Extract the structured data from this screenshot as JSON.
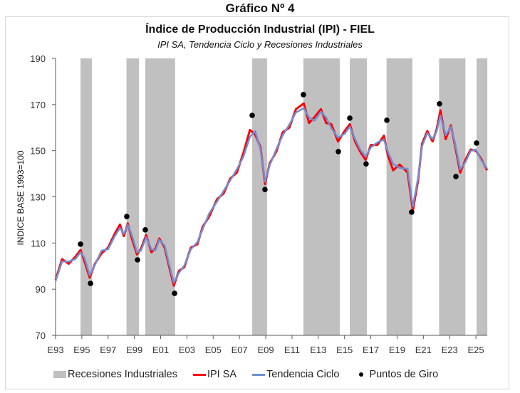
{
  "header": {
    "figure_label": "Gráfico Nº 4"
  },
  "colors": {
    "recession": "#c0c0c0",
    "ipi_sa": "#ff0000",
    "trend": "#6f8fd8",
    "turning_points": "#000000",
    "axis": "#595959"
  },
  "chart_data": {
    "type": "line",
    "title": "Índice de Producción Industrial (IPI) - FIEL",
    "subtitle": "IPI SA, Tendencia Ciclo y Recesiones Industriales",
    "xlabel": "",
    "ylabel": "INDICE BASE 1993=100",
    "xlim": [
      1993,
      2026
    ],
    "ylim": [
      70,
      190
    ],
    "yticks": [
      70,
      90,
      110,
      130,
      150,
      170,
      190
    ],
    "ytick_labels": [
      "70",
      "90",
      "110",
      "130",
      "150",
      "170",
      "190"
    ],
    "xticks": [
      1993,
      1995,
      1997,
      1999,
      2001,
      2003,
      2005,
      2007,
      2009,
      2011,
      2013,
      2015,
      2017,
      2019,
      2021,
      2023,
      2025
    ],
    "xtick_labels": [
      "E93",
      "E95",
      "E97",
      "E99",
      "E01",
      "E03",
      "E05",
      "E07",
      "E09",
      "E11",
      "E13",
      "E15",
      "E17",
      "E19",
      "E21",
      "E23",
      "E25"
    ],
    "grid": false,
    "legend_position": "bottom",
    "legend": [
      {
        "name": "Recesiones Industriales",
        "kind": "rect"
      },
      {
        "name": "IPI SA",
        "kind": "line"
      },
      {
        "name": "Tendencia Ciclo",
        "kind": "line"
      },
      {
        "name": "Puntos de Giro",
        "kind": "dot"
      }
    ],
    "recessions": [
      [
        1994.9,
        1995.77
      ],
      [
        1998.4,
        1999.35
      ],
      [
        1999.83,
        2002.1
      ],
      [
        2007.97,
        2009.1
      ],
      [
        2011.87,
        2014.64
      ],
      [
        2015.4,
        2016.7
      ],
      [
        2018.2,
        2020.17
      ],
      [
        2022.2,
        2024.2
      ],
      [
        2025.05,
        2025.87
      ]
    ],
    "series": [
      {
        "name": "Tendencia Ciclo",
        "x": [
          1993.0,
          1993.5,
          1994.0,
          1994.5,
          1994.9,
          1995.2,
          1995.6,
          1996.0,
          1996.5,
          1997.0,
          1997.5,
          1997.9,
          1998.2,
          1998.5,
          1998.8,
          1999.2,
          1999.5,
          1999.9,
          2000.3,
          2000.6,
          2000.9,
          2001.3,
          2001.7,
          2002.0,
          2002.4,
          2002.8,
          2003.3,
          2003.8,
          2004.2,
          2004.7,
          2005.3,
          2005.8,
          2006.3,
          2006.8,
          2007.3,
          2007.8,
          2008.2,
          2008.6,
          2008.95,
          2009.3,
          2009.8,
          2010.3,
          2010.8,
          2011.3,
          2011.9,
          2012.3,
          2012.7,
          2013.2,
          2013.6,
          2014.0,
          2014.5,
          2015.0,
          2015.4,
          2015.8,
          2016.2,
          2016.6,
          2017.0,
          2017.5,
          2018.0,
          2018.3,
          2018.7,
          2019.2,
          2019.8,
          2020.2,
          2020.6,
          2020.9,
          2021.3,
          2021.7,
          2022.0,
          2022.3,
          2022.7,
          2023.1,
          2023.4,
          2023.8,
          2024.2,
          2024.6,
          2025.0,
          2025.4,
          2025.85
        ],
        "values": [
          93.5,
          102,
          102,
          103,
          106,
          103.6,
          96,
          100.5,
          106.7,
          107.3,
          112.9,
          116.5,
          114,
          117.8,
          113.5,
          106,
          106.7,
          112.5,
          107.3,
          106.7,
          111.4,
          108.9,
          99.6,
          92.8,
          97.1,
          100.2,
          107.3,
          110.4,
          116,
          122.8,
          128,
          132.6,
          137.2,
          141.9,
          147.4,
          156,
          158.5,
          150.5,
          136.6,
          143.7,
          150.5,
          156.7,
          161.3,
          166.6,
          168.4,
          164.4,
          162.9,
          166.9,
          164.4,
          159.7,
          155.7,
          157.3,
          160.4,
          155.1,
          150.5,
          147.4,
          151.4,
          153.6,
          154.8,
          149.6,
          144.3,
          142.5,
          142.2,
          125.8,
          138.2,
          152,
          157.6,
          155.1,
          158.2,
          165.3,
          156.7,
          160.4,
          153.6,
          141.9,
          145,
          149.9,
          150.5,
          145.9,
          142.2
        ]
      },
      {
        "name": "IPI SA",
        "x": [
          1993.0,
          1993.5,
          1994.0,
          1994.5,
          1994.9,
          1995.2,
          1995.6,
          1996.0,
          1996.5,
          1997.0,
          1997.5,
          1997.9,
          1998.2,
          1998.5,
          1998.8,
          1999.2,
          1999.5,
          1999.9,
          2000.3,
          2000.6,
          2000.9,
          2001.3,
          2001.7,
          2002.0,
          2002.4,
          2002.8,
          2003.3,
          2003.8,
          2004.2,
          2004.7,
          2005.3,
          2005.8,
          2006.3,
          2006.8,
          2007.3,
          2007.8,
          2008.2,
          2008.6,
          2008.95,
          2009.3,
          2009.8,
          2010.3,
          2010.8,
          2011.3,
          2011.9,
          2012.3,
          2012.7,
          2013.2,
          2013.6,
          2014.0,
          2014.5,
          2015.0,
          2015.4,
          2015.8,
          2016.2,
          2016.6,
          2017.0,
          2017.5,
          2018.0,
          2018.3,
          2018.7,
          2019.2,
          2019.8,
          2020.2,
          2020.6,
          2020.9,
          2021.3,
          2021.7,
          2022.0,
          2022.3,
          2022.7,
          2023.1,
          2023.4,
          2023.8,
          2024.2,
          2024.6,
          2025.0,
          2025.4,
          2025.85
        ],
        "values": [
          94,
          103,
          101,
          104,
          107,
          102,
          95,
          101,
          105.5,
          108,
          114,
          118,
          113,
          118.5,
          112,
          105,
          107.5,
          113.5,
          106,
          107.5,
          112,
          108,
          98.5,
          91.5,
          98,
          99.5,
          108,
          109.5,
          117,
          121.5,
          129,
          131.5,
          138,
          140.5,
          149,
          159,
          157,
          151.5,
          135.5,
          144.5,
          149.5,
          158,
          160,
          168,
          170.5,
          162,
          164.5,
          168,
          162,
          161.5,
          154,
          158.5,
          161.5,
          154,
          149.5,
          146,
          152.5,
          152.5,
          156.5,
          148,
          141.5,
          144,
          140.5,
          124,
          137,
          153,
          158.5,
          154,
          159,
          167.5,
          155,
          161,
          152.5,
          140.5,
          146,
          150.5,
          150,
          146.5,
          141.5
        ]
      }
    ],
    "turning_points": {
      "x": [
        1994.9,
        1995.66,
        1998.42,
        1999.24,
        1999.83,
        2002.06,
        2007.97,
        2008.94,
        2011.87,
        2014.53,
        2015.4,
        2016.64,
        2018.22,
        2020.11,
        2022.23,
        2023.48,
        2025.05
      ],
      "values": [
        109.5,
        92.5,
        121.5,
        102.7,
        115.7,
        88.2,
        165.3,
        133.2,
        174.3,
        149.6,
        164.1,
        144.3,
        163.2,
        123.4,
        170.3,
        138.8,
        153.3
      ]
    }
  }
}
